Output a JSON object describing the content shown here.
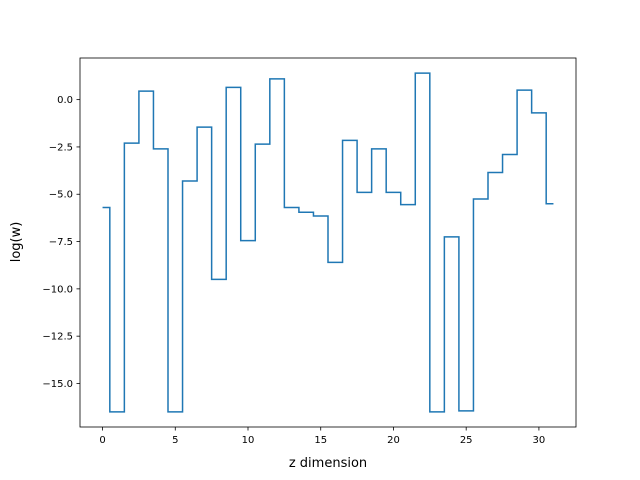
{
  "chart_data": {
    "type": "line",
    "drawstyle": "steps-mid",
    "title": "",
    "xlabel": "z dimension",
    "ylabel": "log(w)",
    "xlim": [
      -1.55,
      32.55
    ],
    "ylim": [
      -17.3,
      2.2
    ],
    "xticks": [
      0,
      5,
      10,
      15,
      20,
      25,
      30
    ],
    "xtick_labels": [
      "0",
      "5",
      "10",
      "15",
      "20",
      "25",
      "30"
    ],
    "yticks": [
      0.0,
      -2.5,
      -5.0,
      -7.5,
      -10.0,
      -12.5,
      -15.0
    ],
    "ytick_labels": [
      "0.0",
      "−2.5",
      "−5.0",
      "−7.5",
      "−10.0",
      "−12.5",
      "−15.0"
    ],
    "grid": false,
    "line_color": "#1f77b4",
    "series": [
      {
        "x": [
          0,
          1,
          2,
          3,
          4,
          5,
          6,
          7,
          8,
          9,
          10,
          11,
          12,
          13,
          14,
          15,
          16,
          17,
          18,
          19,
          20,
          21,
          22,
          23,
          24,
          25,
          26,
          27,
          28,
          29,
          30,
          31
        ],
        "values": [
          -5.7,
          -16.5,
          -2.3,
          0.45,
          -2.6,
          -16.5,
          -4.3,
          -1.45,
          -9.5,
          0.65,
          -7.45,
          -2.35,
          1.1,
          -5.7,
          -5.95,
          -6.15,
          -8.6,
          -2.15,
          -4.9,
          -2.6,
          -4.9,
          -5.55,
          1.4,
          -16.5,
          -7.25,
          -16.45,
          -5.25,
          -3.85,
          -2.9,
          0.5,
          -0.7,
          -5.5
        ]
      }
    ]
  }
}
